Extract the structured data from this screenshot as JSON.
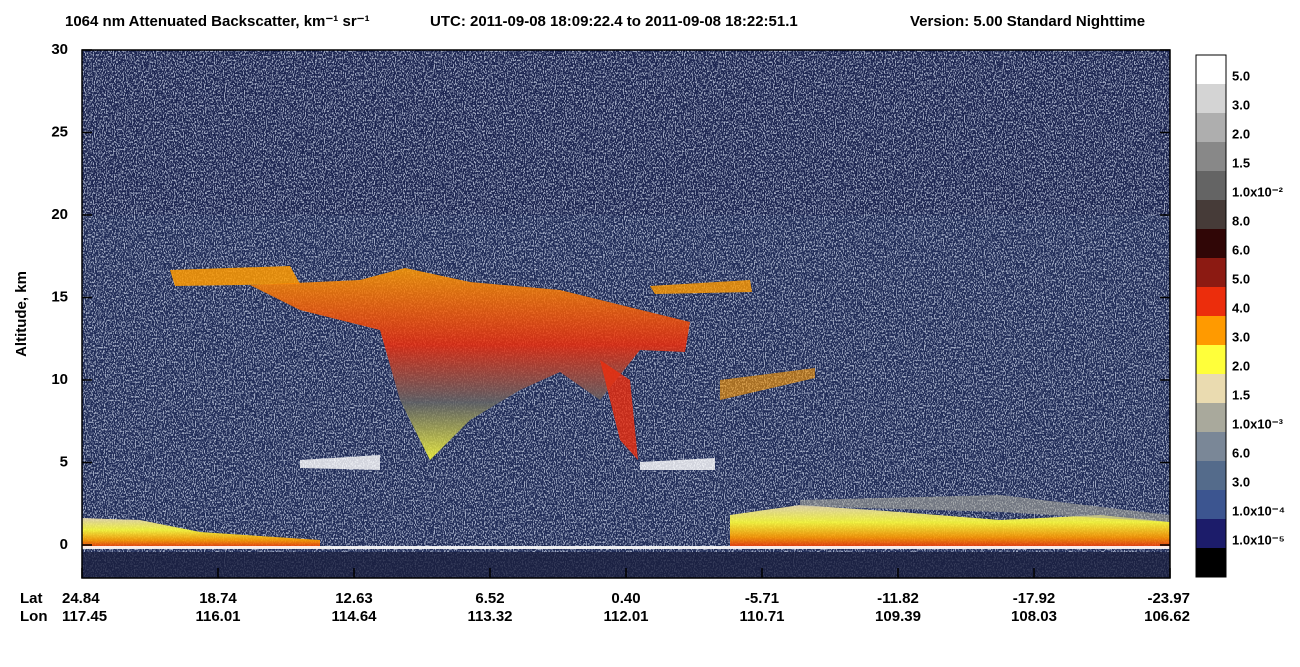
{
  "chart_data": {
    "type": "curtain",
    "title": "1064 nm Attenuated Backscatter, km⁻¹ sr⁻¹",
    "subtitle": "UTC:  2011-09-08 18:09:22.4  to  2011-09-08 18:22:51.1",
    "version": "Version: 5.00  Standard  Nighttime",
    "ylabel": "Altitude, km",
    "ylim": [
      -2,
      30
    ],
    "yticks": [
      0,
      5,
      10,
      15,
      20,
      25,
      30
    ],
    "x_tick_rows": [
      {
        "name": "Lat",
        "values": [
          24.84,
          18.74,
          12.63,
          6.52,
          {
            "value": 0.4,
            "label": "0.40"
          },
          -5.71,
          -11.82,
          -17.92,
          -23.97
        ]
      },
      {
        "name": "Lon",
        "values": [
          117.45,
          116.01,
          114.64,
          113.32,
          112.01,
          110.71,
          109.39,
          108.03,
          106.62
        ]
      }
    ],
    "colorbar": {
      "colors": [
        "#ffffff",
        "#d4d4d4",
        "#aeaeae",
        "#888888",
        "#646464",
        "#463b38",
        "#300606",
        "#8c1a12",
        "#ec2d0c",
        "#ff9a00",
        "#ffff3a",
        "#eadbb0",
        "#a9a99c",
        "#7a8797",
        "#546b8b",
        "#3c5590",
        "#1c1c6a",
        "#000000"
      ],
      "labels": [
        "5.0",
        "3.0",
        "2.0",
        "1.5",
        "1.0x10⁻²",
        "8.0",
        "6.0",
        "5.0",
        "4.0",
        "3.0",
        "2.0",
        "1.5",
        "1.0x10⁻³",
        "6.0",
        "3.0",
        "1.0x10⁻⁴",
        "1.0x10⁻⁵"
      ]
    }
  }
}
